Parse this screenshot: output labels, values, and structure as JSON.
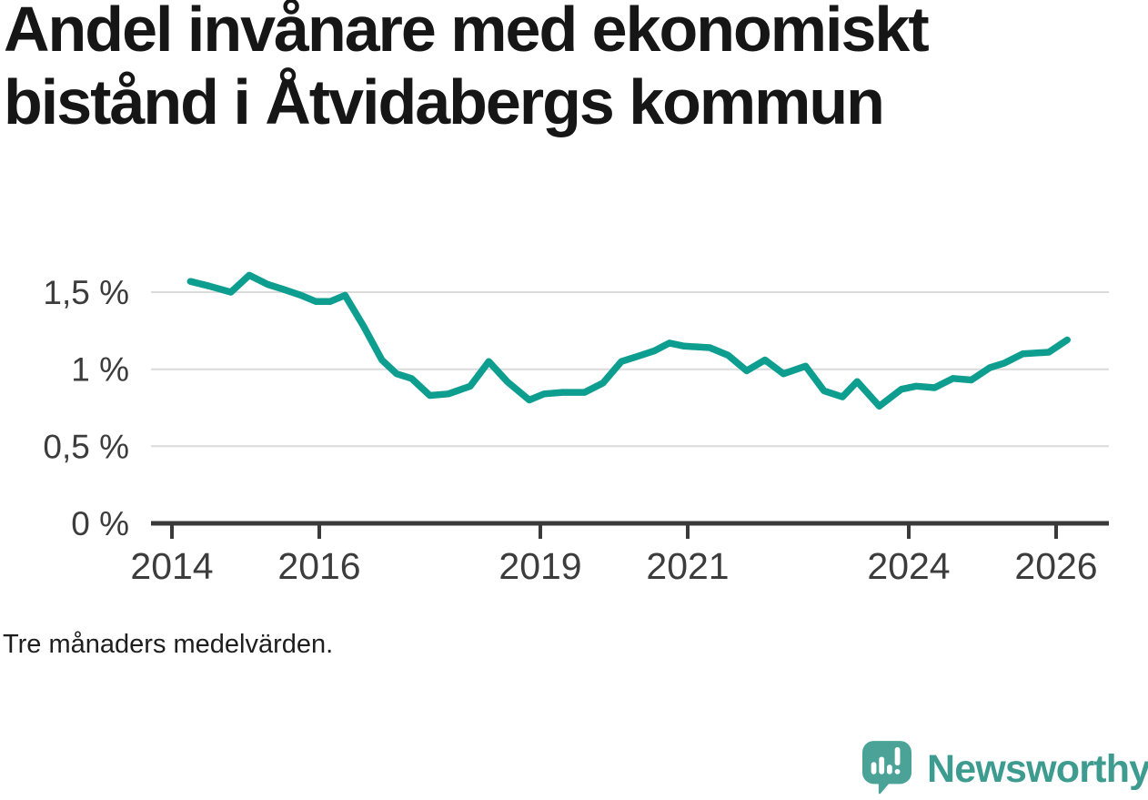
{
  "title_line1": "Andel invånare med ekonomiskt",
  "title_line2": "bistånd i Åtvidabergs kommun",
  "footnote": "Tre månaders medelvärden.",
  "brand": {
    "name": "Newsworthy",
    "logo_icon": "bar-chart-speech-bubble-icon"
  },
  "colors": {
    "line": "#0D9E90",
    "grid": "#DBDBDB",
    "axis": "#3A3A3A",
    "tick_label": "#3C3C3C",
    "title_text": "#161616",
    "footnote_text": "#1E1E1E",
    "brand_icon": "#4AA396",
    "brand_text": "#3D9C8F"
  },
  "chart_data": {
    "type": "line",
    "title": "Andel invånare med ekonomiskt bistånd i Åtvidabergs kommun",
    "subtitle_note": "Tre månaders medelvärden.",
    "unit": "%",
    "series": [
      {
        "name": "Andel invånare med ekonomiskt bistånd",
        "x": [
          2014.25,
          2014.5,
          2014.8,
          2015.05,
          2015.3,
          2015.5,
          2015.75,
          2015.95,
          2016.15,
          2016.35,
          2016.6,
          2016.85,
          2017.05,
          2017.25,
          2017.5,
          2017.75,
          2018.05,
          2018.3,
          2018.55,
          2018.85,
          2019.05,
          2019.3,
          2019.6,
          2019.85,
          2020.1,
          2020.3,
          2020.55,
          2020.75,
          2020.95,
          2021.3,
          2021.55,
          2021.8,
          2022.05,
          2022.3,
          2022.6,
          2022.85,
          2023.1,
          2023.3,
          2023.6,
          2023.9,
          2024.1,
          2024.35,
          2024.6,
          2024.85,
          2025.1,
          2025.3,
          2025.55,
          2025.9,
          2026.15
        ],
        "y": [
          1.57,
          1.54,
          1.5,
          1.61,
          1.55,
          1.52,
          1.48,
          1.44,
          1.44,
          1.48,
          1.28,
          1.06,
          0.97,
          0.94,
          0.83,
          0.84,
          0.89,
          1.05,
          0.92,
          0.8,
          0.84,
          0.85,
          0.85,
          0.91,
          1.05,
          1.08,
          1.12,
          1.17,
          1.15,
          1.14,
          1.09,
          0.99,
          1.06,
          0.97,
          1.02,
          0.86,
          0.82,
          0.92,
          0.76,
          0.87,
          0.89,
          0.88,
          0.94,
          0.93,
          1.01,
          1.04,
          1.1,
          1.11,
          1.19
        ]
      }
    ],
    "xlabel": "",
    "ylabel": "",
    "xticks": [
      2014,
      2016,
      2019,
      2021,
      2024,
      2026
    ],
    "xtick_labels": [
      "2014",
      "2016",
      "2019",
      "2021",
      "2024",
      "2026"
    ],
    "yticks": [
      0,
      0.5,
      1,
      1.5
    ],
    "ytick_labels": [
      "0 %",
      "0,5 %",
      "1 %",
      "1,5 %"
    ],
    "ylim": [
      0,
      1.75
    ],
    "xlim": [
      2013.85,
      2026.7
    ],
    "grid": "horizontal",
    "legend": "none"
  }
}
